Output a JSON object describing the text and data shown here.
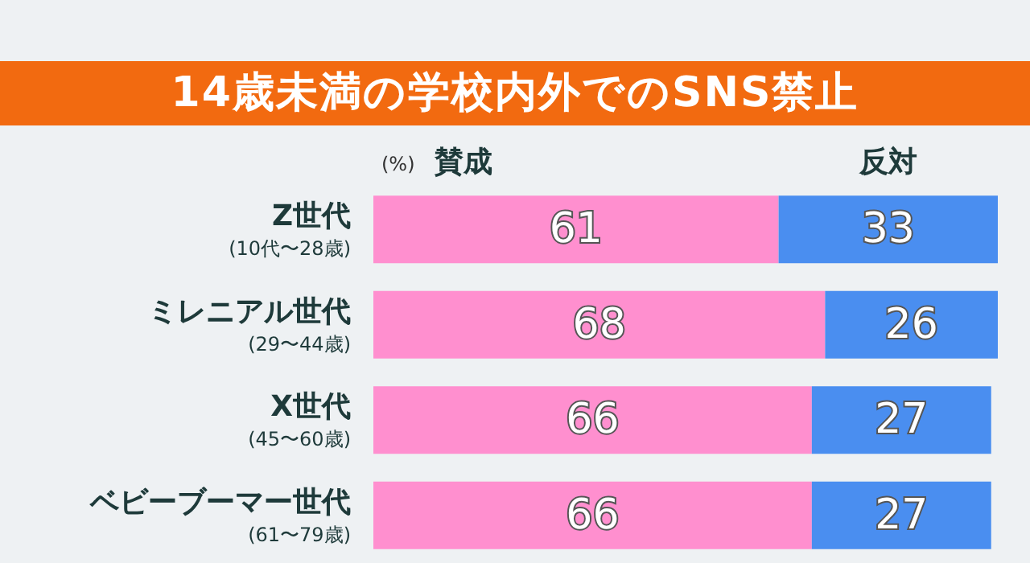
{
  "chart_data": {
    "type": "bar",
    "orientation": "horizontal",
    "stacked": true,
    "data_labels": true,
    "title": "14歳未満の学校内外でのSNS禁止",
    "annotations": [
      "(%)"
    ],
    "categories": [
      "Z世代\n(10代〜28歳)",
      "ミレニアル世代\n(29〜44歳)",
      "X世代\n(45〜60歳)",
      "ベビーブーマー世代\n(61〜79歳)"
    ],
    "series": [
      {
        "name": "賛成",
        "color": "#ff8fcf",
        "values": [
          61,
          68,
          66,
          66
        ]
      },
      {
        "name": "反対",
        "color": "#4a8ef0",
        "values": [
          33,
          26,
          27,
          27
        ]
      }
    ]
  }
}
